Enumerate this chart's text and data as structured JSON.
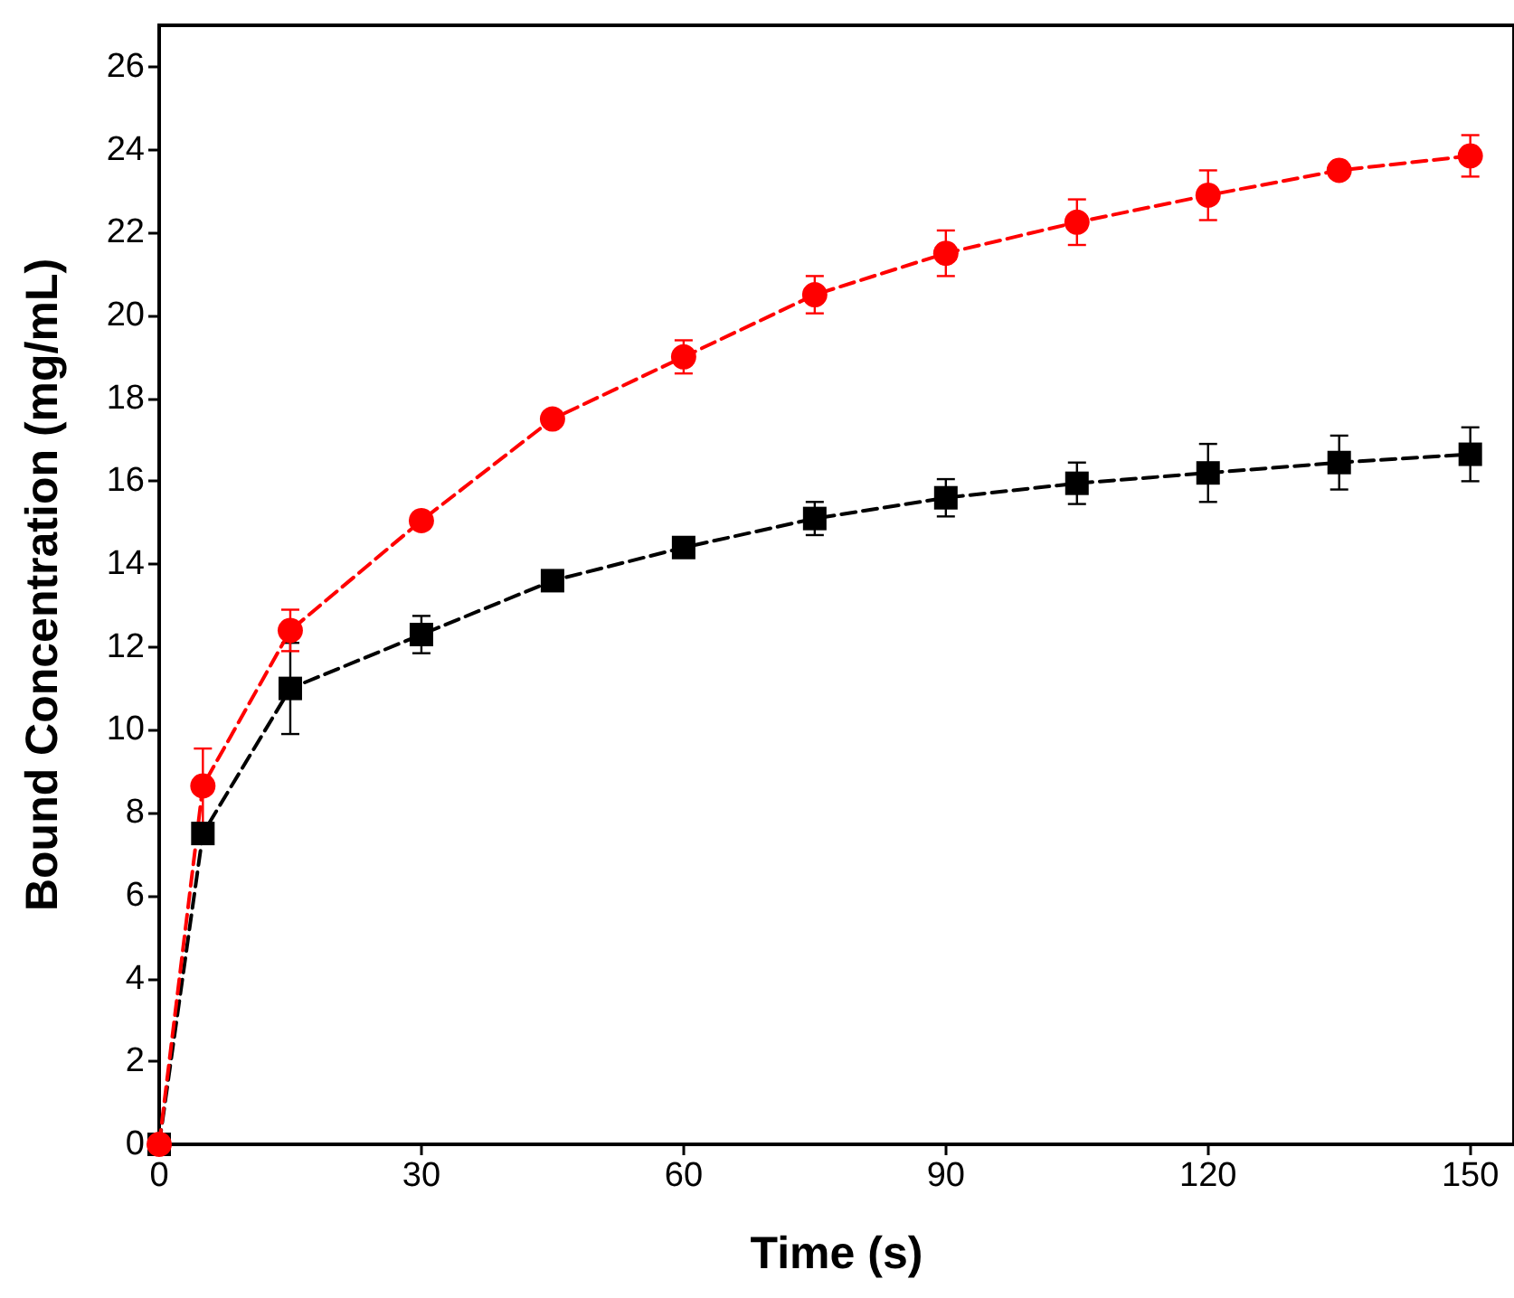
{
  "chart_data": {
    "type": "line",
    "xlabel": "Time (s)",
    "ylabel": "Bound Concentration (mg/mL)",
    "x": [
      0,
      5,
      15,
      30,
      45,
      60,
      75,
      90,
      105,
      120,
      135,
      150
    ],
    "series": [
      {
        "color": "#000000",
        "marker": "square",
        "values": [
          0,
          7.5,
          11.0,
          12.3,
          13.6,
          14.4,
          15.1,
          15.6,
          15.95,
          16.2,
          16.45,
          16.65
        ],
        "errors": [
          null,
          null,
          1.1,
          0.45,
          null,
          null,
          0.4,
          0.45,
          0.5,
          0.7,
          0.65,
          0.65
        ]
      },
      {
        "color": "#ff0000",
        "marker": "circle",
        "values": [
          0,
          8.65,
          12.4,
          15.05,
          17.5,
          19.0,
          20.5,
          21.5,
          22.25,
          22.9,
          23.5,
          23.85
        ],
        "errors": [
          null,
          0.9,
          0.5,
          null,
          null,
          0.4,
          0.45,
          0.55,
          0.55,
          0.6,
          null,
          0.5
        ]
      }
    ],
    "xlim": [
      0,
      155
    ],
    "xticks": [
      0,
      30,
      60,
      90,
      120,
      150
    ],
    "ylim": [
      0,
      27
    ],
    "yticks": [
      0,
      2,
      4,
      6,
      8,
      10,
      12,
      14,
      16,
      18,
      20,
      22,
      24,
      26
    ],
    "line_style": "dashed"
  }
}
